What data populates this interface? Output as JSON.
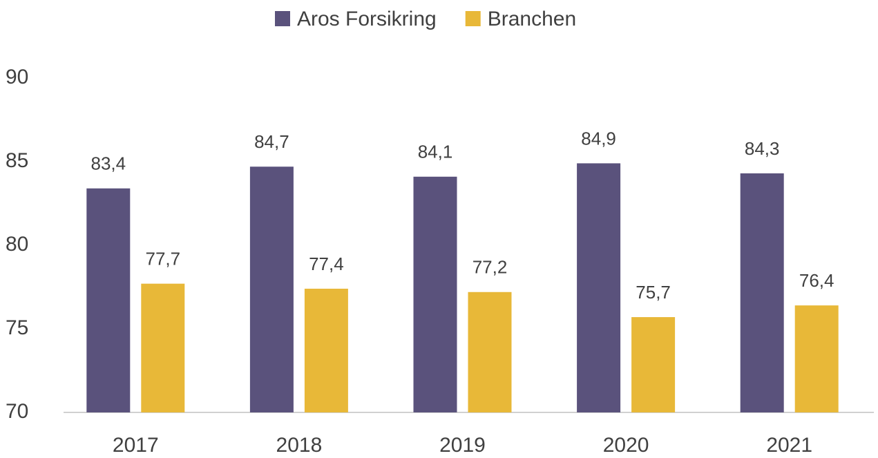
{
  "chart_data": {
    "type": "bar",
    "categories": [
      "2017",
      "2018",
      "2019",
      "2020",
      "2021"
    ],
    "series": [
      {
        "name": "Aros Forsikring",
        "color": "#5a527c",
        "values": [
          83.4,
          84.7,
          84.1,
          84.9,
          84.3
        ],
        "value_labels": [
          "83,4",
          "84,7",
          "84,1",
          "84,9",
          "84,3"
        ]
      },
      {
        "name": "Branchen",
        "color": "#e8b838",
        "values": [
          77.7,
          77.4,
          77.2,
          75.7,
          76.4
        ],
        "value_labels": [
          "77,7",
          "77,4",
          "77,2",
          "75,7",
          "76,4"
        ]
      }
    ],
    "ylim": [
      70,
      90
    ],
    "yticks": [
      70,
      75,
      80,
      85,
      90
    ],
    "grid": false,
    "legend": "top"
  }
}
